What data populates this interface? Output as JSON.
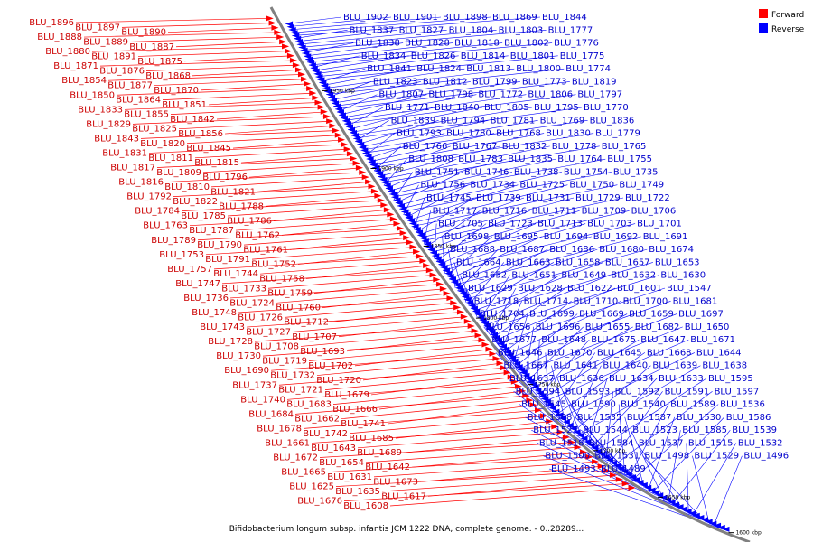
{
  "caption": "Bifidobacterium longum subsp. infantis JCM 1222 DNA, complete genome. - 0..28289...",
  "legend": [
    {
      "label": "Forward",
      "color": "#ff0000"
    },
    {
      "label": "Reverse",
      "color": "#0000ff"
    }
  ],
  "colors": {
    "forward": "#ff0000",
    "reverse": "#0000ff",
    "backbone": "#808080",
    "text_forward": "#cc0000",
    "text_reverse": "#0000cc"
  },
  "ticks": [
    "1950 kbp",
    "1900 kbp",
    "1850 kbp",
    "1800 kbp",
    "1750 kbp",
    "1700 kbp",
    "1650 kbp",
    "1600 kbp"
  ],
  "forward_labels": [
    "BLU_1896",
    "BLU_1897",
    "BLU_1890",
    "BLU_1888",
    "BLU_1889",
    "BLU_1887",
    "BLU_1880",
    "BLU_1891",
    "BLU_1875",
    "BLU_1871",
    "BLU_1876",
    "BLU_1868",
    "BLU_1854",
    "BLU_1877",
    "BLU_1870",
    "BLU_1850",
    "BLU_1864",
    "BLU_1851",
    "BLU_1833",
    "BLU_1855",
    "BLU_1842",
    "BLU_1829",
    "BLU_1825",
    "BLU_1856",
    "BLU_1843",
    "BLU_1820",
    "BLU_1845",
    "BLU_1831",
    "BLU_1811",
    "BLU_1815",
    "BLU_1817",
    "BLU_1809",
    "BLU_1796",
    "BLU_1816",
    "BLU_1810",
    "BLU_1821",
    "BLU_1792",
    "BLU_1822",
    "BLU_1788",
    "BLU_1784",
    "BLU_1785",
    "BLU_1786",
    "BLU_1763",
    "BLU_1787",
    "BLU_1762",
    "BLU_1789",
    "BLU_1790",
    "BLU_1761",
    "BLU_1753",
    "BLU_1791",
    "BLU_1752",
    "BLU_1757",
    "BLU_1744",
    "BLU_1758",
    "BLU_1747",
    "BLU_1733",
    "BLU_1759",
    "BLU_1736",
    "BLU_1724",
    "BLU_1760",
    "BLU_1748",
    "BLU_1726",
    "BLU_1712",
    "BLU_1743",
    "BLU_1727",
    "BLU_1707",
    "BLU_1728",
    "BLU_1708",
    "BLU_1693",
    "BLU_1730",
    "BLU_1719",
    "BLU_1702",
    "BLU_1690",
    "BLU_1732",
    "BLU_1720",
    "BLU_1737",
    "BLU_1721",
    "BLU_1679",
    "BLU_1740",
    "BLU_1683",
    "BLU_1666",
    "BLU_1684",
    "BLU_1662",
    "BLU_1741",
    "BLU_1678",
    "BLU_1742",
    "BLU_1685",
    "BLU_1661",
    "BLU_1643",
    "BLU_1689",
    "BLU_1672",
    "BLU_1654",
    "BLU_1642",
    "BLU_1665",
    "BLU_1631",
    "BLU_1673",
    "BLU_1625",
    "BLU_1635",
    "BLU_1617",
    "BLU_1676",
    "BLU_1608"
  ],
  "reverse_labels": [
    "BLU_1902",
    "BLU_1901",
    "BLU_1898",
    "BLU_1869",
    "BLU_1844",
    "BLU_1837",
    "BLU_1827",
    "BLU_1804",
    "BLU_1803",
    "BLU_1777",
    "BLU_1838",
    "BLU_1828",
    "BLU_1818",
    "BLU_1802",
    "BLU_1776",
    "BLU_1834",
    "BLU_1826",
    "BLU_1814",
    "BLU_1801",
    "BLU_1775",
    "BLU_1841",
    "BLU_1824",
    "BLU_1813",
    "BLU_1800",
    "BLU_1774",
    "BLU_1823",
    "BLU_1812",
    "BLU_1799",
    "BLU_1773",
    "BLU_1819",
    "BLU_1807",
    "BLU_1798",
    "BLU_1772",
    "BLU_1806",
    "BLU_1797",
    "BLU_1771",
    "BLU_1840",
    "BLU_1805",
    "BLU_1795",
    "BLU_1770",
    "BLU_1839",
    "BLU_1794",
    "BLU_1781",
    "BLU_1769",
    "BLU_1836",
    "BLU_1793",
    "BLU_1780",
    "BLU_1768",
    "BLU_1830",
    "BLU_1779",
    "BLU_1766",
    "BLU_1767",
    "BLU_1832",
    "BLU_1778",
    "BLU_1765",
    "BLU_1808",
    "BLU_1783",
    "BLU_1835",
    "BLU_1764",
    "BLU_1755",
    "BLU_1751",
    "BLU_1746",
    "BLU_1738",
    "BLU_1754",
    "BLU_1735",
    "BLU_1756",
    "BLU_1734",
    "BLU_1725",
    "BLU_1750",
    "BLU_1749",
    "BLU_1745",
    "BLU_1739",
    "BLU_1731",
    "BLU_1729",
    "BLU_1722",
    "BLU_1717",
    "BLU_1716",
    "BLU_1711",
    "BLU_1709",
    "BLU_1706",
    "BLU_1705",
    "BLU_1723",
    "BLU_1713",
    "BLU_1703",
    "BLU_1701",
    "BLU_1698",
    "BLU_1695",
    "BLU_1694",
    "BLU_1692",
    "BLU_1691",
    "BLU_1688",
    "BLU_1687",
    "BLU_1686",
    "BLU_1680",
    "BLU_1674",
    "BLU_1664",
    "BLU_1663",
    "BLU_1658",
    "BLU_1657",
    "BLU_1653",
    "BLU_1652",
    "BLU_1651",
    "BLU_1649",
    "BLU_1632",
    "BLU_1630",
    "BLU_1629",
    "BLU_1628",
    "BLU_1622",
    "BLU_1601",
    "BLU_1547",
    "BLU_1718",
    "BLU_1714",
    "BLU_1710",
    "BLU_1700",
    "BLU_1681",
    "BLU_1704",
    "BLU_1699",
    "BLU_1669",
    "BLU_1659",
    "BLU_1697",
    "BLU_1656",
    "BLU_1696",
    "BLU_1655",
    "BLU_1682",
    "BLU_1650",
    "BLU_1677",
    "BLU_1648",
    "BLU_1675",
    "BLU_1647",
    "BLU_1671",
    "BLU_1646",
    "BLU_1670",
    "BLU_1645",
    "BLU_1668",
    "BLU_1644",
    "BLU_1667",
    "BLU_1641",
    "BLU_1640",
    "BLU_1639",
    "BLU_1638",
    "BLU_1637",
    "BLU_1636",
    "BLU_1634",
    "BLU_1633",
    "BLU_1595",
    "BLU_1594",
    "BLU_1593",
    "BLU_1592",
    "BLU_1591",
    "BLU_1597",
    "BLU_1545",
    "BLU_1590",
    "BLU_1540",
    "BLU_1589",
    "BLU_1536",
    "BLU_1588",
    "BLU_1535",
    "BLU_1587",
    "BLU_1530",
    "BLU_1586",
    "BLU_1527",
    "BLU_1544",
    "BLU_1523",
    "BLU_1585",
    "BLU_1539",
    "BLU_1518",
    "BLU_1584",
    "BLU_1537",
    "BLU_1515",
    "BLU_1532",
    "BLU_1500",
    "BLU_1531",
    "BLU_1498",
    "BLU_1529",
    "BLU_1496",
    "BLU_1493",
    "BLU_1489"
  ]
}
